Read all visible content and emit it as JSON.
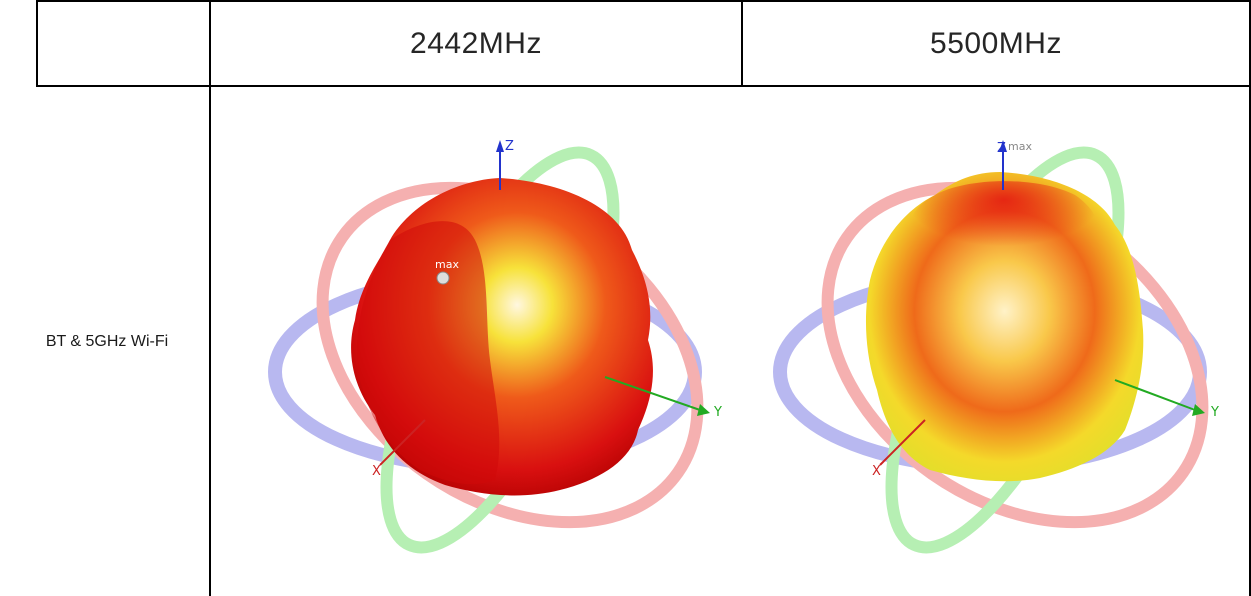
{
  "table": {
    "header": {
      "empty_cell": "",
      "col1": "2442MHz",
      "col2": "5500MHz"
    },
    "rows": [
      {
        "label": "BT & 5GHz Wi-Fi"
      }
    ]
  },
  "patterns": {
    "axis_labels": {
      "z": "Z",
      "y": "Y",
      "x": "X"
    },
    "max_label": "max",
    "colors": {
      "red_ring": "#f5a3a3",
      "blue_ring": "#b8b8f0",
      "green_ring": "#b6efb3",
      "body_red": "#e41010",
      "body_yellow": "#f5e61a"
    }
  }
}
